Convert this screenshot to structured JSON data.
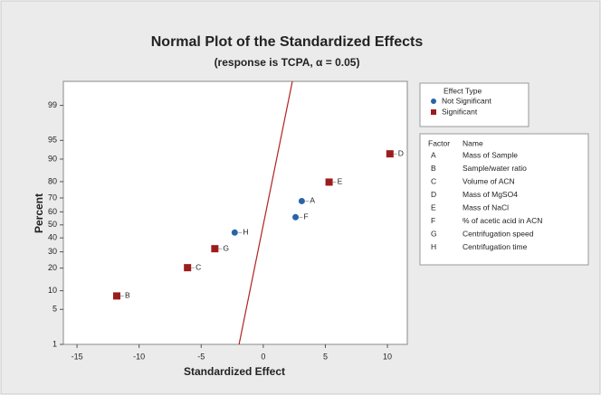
{
  "chart_data": {
    "type": "normal_probability",
    "title": "Normal Plot of the Standardized Effects",
    "subtitle": "(response is TCPA, α = 0.05)",
    "x_label": "Standardized Effect",
    "y_label": "Percent",
    "xlim": [
      -16.1,
      11.6
    ],
    "xticks": [
      -15,
      -10,
      -5,
      0,
      5,
      10
    ],
    "ylim": [
      1,
      99.74
    ],
    "yticks": [
      1,
      5,
      10,
      20,
      30,
      40,
      50,
      60,
      70,
      80,
      90,
      95,
      99
    ],
    "legend_title": "Effect Type",
    "series": [
      {
        "name": "Not Significant",
        "color": "#2a63a8",
        "marker": "circle",
        "x": [
          -2.3,
          2.6,
          3.1
        ],
        "values": [
          44.05,
          55.95,
          67.86
        ],
        "labels": [
          "H",
          "F",
          "A"
        ]
      },
      {
        "name": "Significant",
        "color": "#9c1d1d",
        "marker": "square",
        "x": [
          -11.8,
          -6.1,
          -3.9,
          5.3,
          10.2
        ],
        "values": [
          8.33,
          20.24,
          32.14,
          79.76,
          91.67
        ],
        "labels": [
          "B",
          "C",
          "G",
          "E",
          "D"
        ]
      }
    ],
    "fit_line": {
      "color": "#b22222",
      "x": [
        -1.95,
        1.95
      ],
      "values": [
        1,
        99
      ]
    },
    "factor_table": {
      "header": [
        "Factor",
        "Name"
      ],
      "rows": [
        [
          "A",
          "Mass of Sample"
        ],
        [
          "B",
          "Sample/water ratio"
        ],
        [
          "C",
          "Volume of ACN"
        ],
        [
          "D",
          "Mass of MgSO4"
        ],
        [
          "E",
          "Mass of NaCl"
        ],
        [
          "F",
          "% of acetic acid in ACN"
        ],
        [
          "G",
          "Centrifugation speed"
        ],
        [
          "H",
          "Centrifugation time"
        ]
      ]
    }
  }
}
